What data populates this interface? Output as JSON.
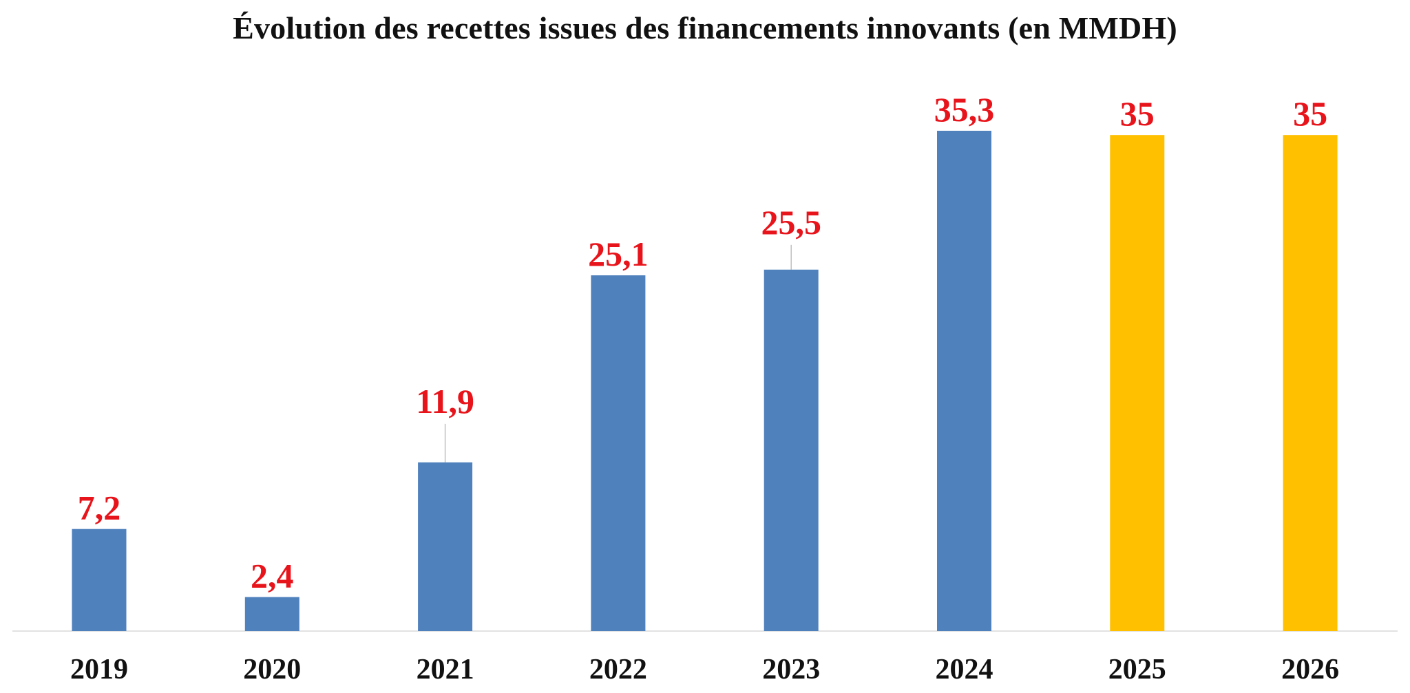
{
  "chart_data": {
    "type": "bar",
    "title": "Évolution des recettes issues des financements innovants (en MMDH)",
    "xlabel": "",
    "ylabel": "",
    "categories": [
      "2019",
      "2020",
      "2021",
      "2022",
      "2023",
      "2024",
      "2025",
      "2026"
    ],
    "values": [
      7.2,
      2.4,
      11.9,
      25.1,
      25.5,
      35.3,
      35,
      35
    ],
    "value_labels": [
      "7,2",
      "2,4",
      "11,9",
      "25,1",
      "25,5",
      "35,3",
      "35",
      "35"
    ],
    "bar_colors": [
      "#4F81BD",
      "#4F81BD",
      "#4F81BD",
      "#4F81BD",
      "#4F81BD",
      "#4F81BD",
      "#FFC000",
      "#FFC000"
    ],
    "label_color": "#E8141B",
    "ylim": [
      0,
      35.3
    ],
    "grid": false,
    "legend": "none"
  }
}
